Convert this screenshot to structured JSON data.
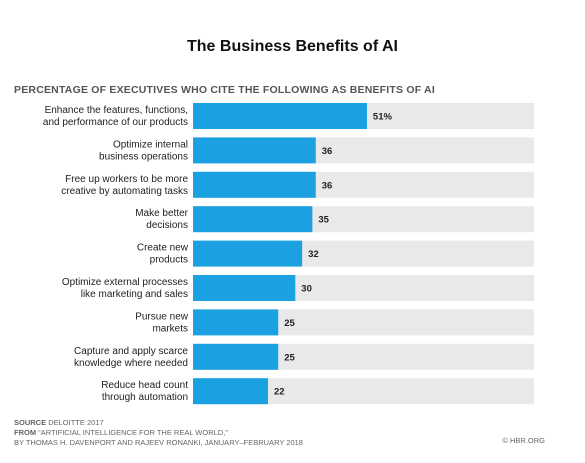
{
  "title": "The Business Benefits of AI",
  "subtitle": "PERCENTAGE OF EXECUTIVES WHO CITE THE FOLLOWING AS BENEFITS OF AI",
  "chart_data": {
    "type": "bar",
    "orientation": "horizontal",
    "categories": [
      [
        "Enhance the features, functions,",
        "and performance of our products"
      ],
      [
        "Optimize internal",
        "business operations"
      ],
      [
        "Free up workers to be more",
        "creative by automating tasks"
      ],
      [
        "Make better",
        "decisions"
      ],
      [
        "Create new",
        "products"
      ],
      [
        "Optimize external processes",
        "like marketing and sales"
      ],
      [
        "Pursue new",
        "markets"
      ],
      [
        "Capture and apply scarce",
        "knowledge where needed"
      ],
      [
        "Reduce head count",
        "through automation"
      ]
    ],
    "values": [
      51,
      36,
      36,
      35,
      32,
      30,
      25,
      25,
      22
    ],
    "value_labels": [
      "51%",
      "36",
      "36",
      "35",
      "32",
      "30",
      "25",
      "25",
      "22"
    ],
    "xlim": [
      0,
      100
    ],
    "bar_color": "#1ba1e2",
    "track_color": "#e9e9e9",
    "grid": false,
    "legend": "none"
  },
  "footer": {
    "source_label": "SOURCE",
    "source_text": "DELOITTE 2017",
    "from_label": "FROM",
    "from_text": "“ARTIFICIAL INTELLIGENCE FOR THE REAL WORLD,”",
    "byline": "BY THOMAS H. DAVENPORT AND RAJEEV RONANKI, JANUARY–FEBRUARY 2018",
    "credit": "© HBR.ORG"
  }
}
